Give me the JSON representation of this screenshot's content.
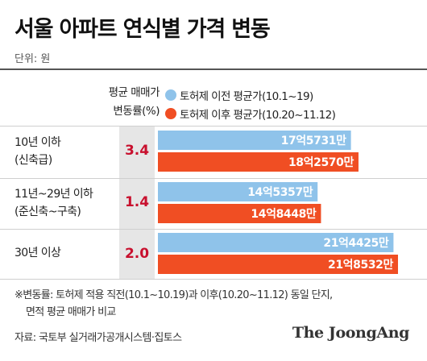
{
  "colors": {
    "before": "#8fc3ea",
    "after": "#f04e23",
    "rate": "#c8102e",
    "rate_column_bg": "#e6e6e6"
  },
  "chart_data": {
    "type": "bar",
    "orientation": "horizontal",
    "title": "서울 아파트 연식별 가격 변동",
    "unit": "단위: 원",
    "legend_heading": [
      "평균 매매가",
      "변동률(%)"
    ],
    "categories": [
      [
        "10년 이하",
        "(신축급)"
      ],
      [
        "11년~29년 이하",
        "(준신축~구축)"
      ],
      [
        "30년 이상"
      ]
    ],
    "change_rate": [
      "3.4",
      "1.4",
      "2.0"
    ],
    "series": [
      {
        "name": "토허제 이전 평균가(10.1~19)",
        "values": [
          1757310000,
          1453570000,
          2144250000
        ],
        "labels": [
          "17억5731만",
          "14억5357만",
          "21억4425만"
        ]
      },
      {
        "name": "토허제 이후 평균가(10.20~11.12)",
        "values": [
          1825700000,
          1484480000,
          2185320000
        ],
        "labels": [
          "18억2570만",
          "14억8448만",
          "21억8532만"
        ]
      }
    ],
    "grid": false,
    "legend_position": "top"
  },
  "footnote": [
    "※변동률: 토허제 적용 직전(10.1~10.19)과 이후(10.20~11.12) 동일 단지,",
    "면적 평균 매매가 비교"
  ],
  "source": "자료: 국토부 실거래가공개시스템·집토스",
  "logo": "The JoongAng"
}
